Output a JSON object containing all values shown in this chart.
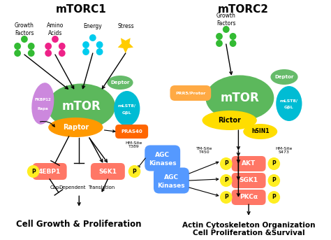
{
  "title_left": "mTORC1",
  "title_right": "mTORC2",
  "bg_color": "#ffffff",
  "colors": {
    "mtor_green": "#5CB85C",
    "raptor_orange": "#FF9900",
    "deptor_green": "#66BB6A",
    "mlst8_teal": "#00BCD4",
    "fkbp_purple": "#CC88DD",
    "pras40_orange": "#FF6600",
    "s6k1_salmon": "#FF7766",
    "ebp1_salmon": "#FF7766",
    "akt_salmon": "#FF7766",
    "sgk1_salmon": "#FF7766",
    "pkca_salmon": "#FF7766",
    "agc_blue": "#5599FF",
    "rictor_yellow": "#FFDD00",
    "hsin1_yellow": "#FFDD00",
    "prrs_orange": "#FFAA44",
    "p_yellow": "#FFEE22",
    "growth_green": "#33BB33",
    "amino_pink": "#EE2288",
    "energy_cyan": "#00CCEE",
    "stress_gold": "#FFCC00"
  },
  "bottom_text_left": "Cell Growth & Proliferation",
  "bottom_text_right1": "Actin Cytoskeleton Organization",
  "bottom_text_right2": "Cell Proliferation &Survival",
  "hm_site_left": "HM-Site\nT389",
  "tm_site": "TM-Site\nT450",
  "hm_site_right": "HM-Site\nS473"
}
